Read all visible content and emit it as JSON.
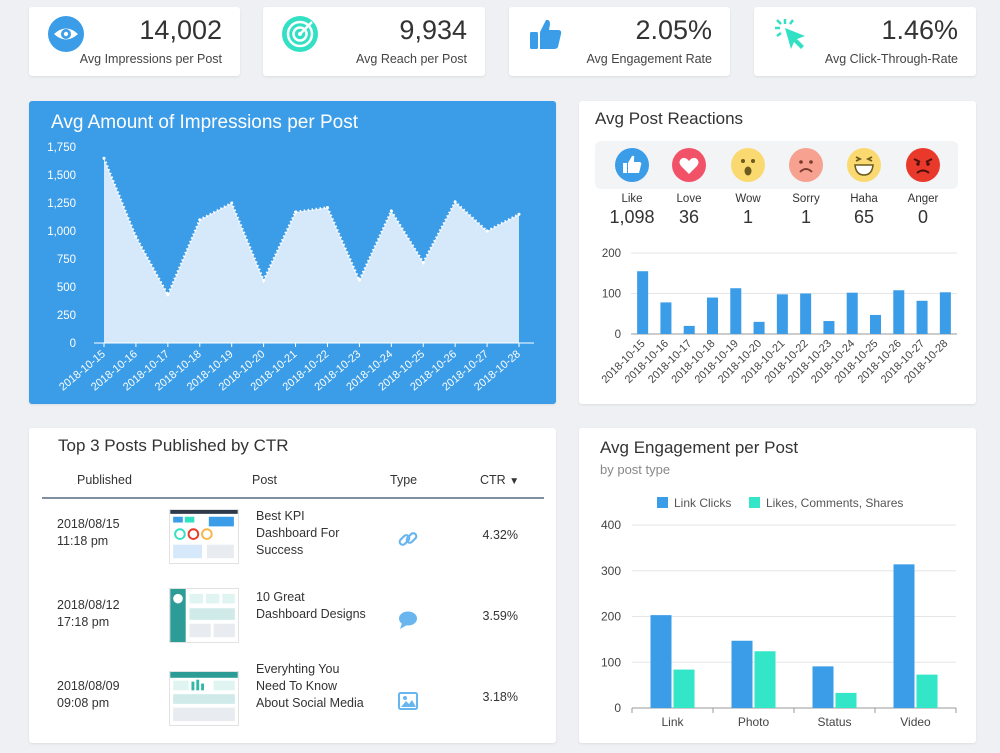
{
  "kpis": [
    {
      "value": "14,002",
      "label": "Avg Impressions per Post",
      "icon": "eye-icon"
    },
    {
      "value": "9,934",
      "label": "Avg Reach per Post",
      "icon": "target-icon"
    },
    {
      "value": "2.05%",
      "label": "Avg Engagement Rate",
      "icon": "thumbs-up-icon"
    },
    {
      "value": "1.46%",
      "label": "Avg Click-Through-Rate",
      "icon": "cursor-click-icon"
    }
  ],
  "impressions": {
    "title": "Avg Amount of Impressions per Post",
    "chart_data": {
      "type": "area",
      "title": "Avg Amount of Impressions per Post",
      "x": [
        "2018-10-15",
        "2018-10-16",
        "2018-10-17",
        "2018-10-18",
        "2018-10-19",
        "2018-10-20",
        "2018-10-21",
        "2018-10-22",
        "2018-10-23",
        "2018-10-24",
        "2018-10-25",
        "2018-10-26",
        "2018-10-27",
        "2018-10-28"
      ],
      "values": [
        1650,
        950,
        430,
        1100,
        1250,
        560,
        1170,
        1210,
        560,
        1180,
        720,
        1260,
        1000,
        1150
      ],
      "yticks": [
        "0",
        "250",
        "500",
        "750",
        "1,000",
        "1,250",
        "1,500",
        "1,750"
      ],
      "ylim": [
        0,
        1750
      ],
      "color": "#d6e9fb",
      "grid": false
    }
  },
  "reactions": {
    "title": "Avg Post Reactions",
    "items": [
      {
        "label": "Like",
        "count": "1,098",
        "icon": "like-icon",
        "color": "#3b9ce8"
      },
      {
        "label": "Love",
        "count": "36",
        "icon": "heart-icon",
        "color": "#f25268"
      },
      {
        "label": "Wow",
        "count": "1",
        "icon": "wow-emoji-icon",
        "color": "#fbd971"
      },
      {
        "label": "Sorry",
        "count": "1",
        "icon": "sad-emoji-icon",
        "color": "#f7a190"
      },
      {
        "label": "Haha",
        "count": "65",
        "icon": "haha-emoji-icon",
        "color": "#fbd971"
      },
      {
        "label": "Anger",
        "count": "0",
        "icon": "angry-emoji-icon",
        "color": "#e9392b"
      }
    ],
    "chart_data": {
      "type": "bar",
      "categories": [
        "2018-10-15",
        "2018-10-16",
        "2018-10-17",
        "2018-10-18",
        "2018-10-19",
        "2018-10-20",
        "2018-10-21",
        "2018-10-22",
        "2018-10-23",
        "2018-10-24",
        "2018-10-25",
        "2018-10-26",
        "2018-10-27",
        "2018-10-28"
      ],
      "values": [
        155,
        78,
        20,
        90,
        113,
        30,
        98,
        100,
        32,
        102,
        47,
        108,
        82,
        103
      ],
      "yticks": [
        "0",
        "100",
        "200"
      ],
      "ylim": [
        0,
        200
      ],
      "color": "#3b9ce8",
      "grid": true
    }
  },
  "posts": {
    "title": "Top 3 Posts Published by CTR",
    "headers": {
      "published": "Published",
      "post": "Post",
      "type": "Type",
      "ctr": "CTR",
      "sort_icon": "caret-down-icon"
    },
    "rows": [
      {
        "date": "2018/08/15",
        "time": "11:18 pm",
        "title": "Best KPI Dashboard For Success",
        "type": "link-icon",
        "ctr": "4.32%"
      },
      {
        "date": "2018/08/12",
        "time": "17:18 pm",
        "title": "10 Great Dashboard Designs",
        "type": "comment-icon",
        "ctr": "3.59%"
      },
      {
        "date": "2018/08/09",
        "time": "09:08 pm",
        "title": "Everyhting You Need To Know About Social Media",
        "type": "image-icon",
        "ctr": "3.18%"
      }
    ]
  },
  "engagement": {
    "title": "Avg Engagement per Post",
    "subtitle": "by post type",
    "chart_data": {
      "type": "bar",
      "categories": [
        "Link",
        "Photo",
        "Status",
        "Video"
      ],
      "series": [
        {
          "name": "Link Clicks",
          "values": [
            203,
            147,
            91,
            314
          ],
          "color": "#3b9ce8"
        },
        {
          "name": "Likes, Comments, Shares",
          "values": [
            84,
            124,
            33,
            73
          ],
          "color": "#32e6c7"
        }
      ],
      "yticks": [
        "0",
        "100",
        "200",
        "300",
        "400"
      ],
      "ylim": [
        0,
        400
      ],
      "legend": "top",
      "grid": true
    }
  }
}
